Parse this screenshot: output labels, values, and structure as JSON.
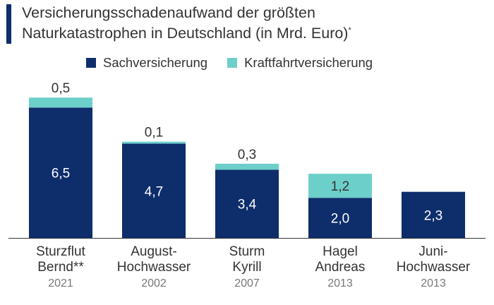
{
  "title_lines": [
    "Versicherungsschadenaufwand der größten",
    "Naturkatastrophen in Deutschland (in Mrd. Euro)"
  ],
  "title_footnote_mark": "*",
  "colors": {
    "sach": "#0e2d6b",
    "kraft": "#6dcfca",
    "text": "#333333",
    "year": "#777777",
    "axis": "#333333"
  },
  "chart_data": {
    "type": "bar",
    "stacked": true,
    "title": "Versicherungsschadenaufwand der größten Naturkatastrophen in Deutschland (in Mrd. Euro)*",
    "categories": [
      {
        "lines": [
          "Sturzflut",
          "Bernd**"
        ],
        "year": "2021"
      },
      {
        "lines": [
          "August-",
          "Hochwasser"
        ],
        "year": "2002"
      },
      {
        "lines": [
          "Sturm",
          "Kyrill"
        ],
        "year": "2007"
      },
      {
        "lines": [
          "Hagel",
          "Andreas"
        ],
        "year": "2013"
      },
      {
        "lines": [
          "Juni-",
          "Hochwasser"
        ],
        "year": "2013"
      }
    ],
    "series": [
      {
        "name": "Sachversicherung",
        "color": "#0e2d6b",
        "values": [
          6.5,
          4.7,
          3.4,
          2.0,
          2.3
        ],
        "labels": [
          "6,5",
          "4,7",
          "3,4",
          "2,0",
          "2,3"
        ]
      },
      {
        "name": "Kraftfahrtversicherung",
        "color": "#6dcfca",
        "values": [
          0.5,
          0.1,
          0.3,
          1.2,
          null
        ],
        "labels": [
          "0,5",
          "0,1",
          "0,3",
          "1,2",
          null
        ]
      }
    ],
    "ylim": [
      0,
      7.5
    ],
    "grid": false,
    "legend_position": "top-left"
  }
}
